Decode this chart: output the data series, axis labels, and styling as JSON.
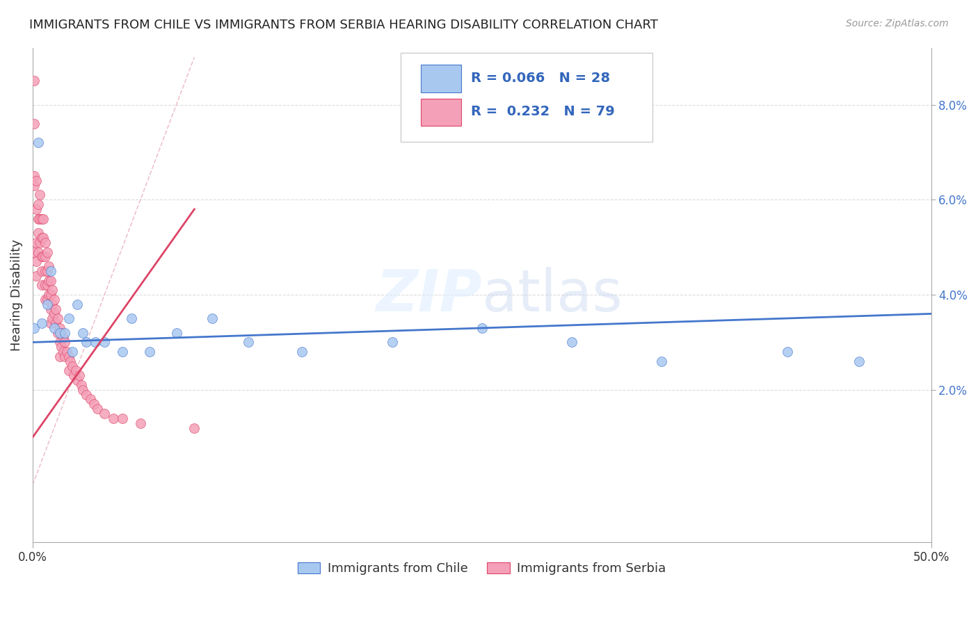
{
  "title": "IMMIGRANTS FROM CHILE VS IMMIGRANTS FROM SERBIA HEARING DISABILITY CORRELATION CHART",
  "source": "Source: ZipAtlas.com",
  "ylabel": "Hearing Disability",
  "xlim": [
    0.0,
    0.5
  ],
  "ylim": [
    -0.01,
    0.092
  ],
  "chile_color": "#a8c8f0",
  "serbia_color": "#f4a0b8",
  "chile_line_color": "#4477cc",
  "serbia_line_color": "#dd4466",
  "chile_R": 0.066,
  "chile_N": 28,
  "serbia_R": 0.232,
  "serbia_N": 79,
  "chile_x": [
    0.001,
    0.003,
    0.005,
    0.008,
    0.01,
    0.012,
    0.015,
    0.018,
    0.02,
    0.022,
    0.025,
    0.028,
    0.03,
    0.035,
    0.04,
    0.05,
    0.055,
    0.065,
    0.08,
    0.1,
    0.12,
    0.15,
    0.2,
    0.25,
    0.3,
    0.35,
    0.42,
    0.46
  ],
  "chile_y": [
    0.033,
    0.072,
    0.034,
    0.038,
    0.045,
    0.033,
    0.032,
    0.032,
    0.035,
    0.028,
    0.038,
    0.032,
    0.03,
    0.03,
    0.03,
    0.028,
    0.035,
    0.028,
    0.032,
    0.035,
    0.03,
    0.028,
    0.03,
    0.033,
    0.03,
    0.026,
    0.028,
    0.026
  ],
  "serbia_x": [
    0.001,
    0.001,
    0.001,
    0.001,
    0.001,
    0.002,
    0.002,
    0.002,
    0.002,
    0.002,
    0.003,
    0.003,
    0.003,
    0.003,
    0.004,
    0.004,
    0.004,
    0.005,
    0.005,
    0.005,
    0.005,
    0.005,
    0.006,
    0.006,
    0.006,
    0.007,
    0.007,
    0.007,
    0.007,
    0.007,
    0.008,
    0.008,
    0.008,
    0.008,
    0.009,
    0.009,
    0.009,
    0.01,
    0.01,
    0.01,
    0.01,
    0.011,
    0.011,
    0.011,
    0.012,
    0.012,
    0.013,
    0.013,
    0.014,
    0.014,
    0.015,
    0.015,
    0.015,
    0.016,
    0.016,
    0.017,
    0.017,
    0.018,
    0.018,
    0.019,
    0.02,
    0.02,
    0.021,
    0.022,
    0.023,
    0.024,
    0.025,
    0.026,
    0.027,
    0.028,
    0.03,
    0.032,
    0.034,
    0.036,
    0.04,
    0.045,
    0.05,
    0.06,
    0.09
  ],
  "serbia_y": [
    0.085,
    0.076,
    0.065,
    0.063,
    0.049,
    0.064,
    0.058,
    0.051,
    0.047,
    0.044,
    0.059,
    0.056,
    0.053,
    0.049,
    0.061,
    0.056,
    0.051,
    0.056,
    0.052,
    0.048,
    0.045,
    0.042,
    0.056,
    0.052,
    0.048,
    0.051,
    0.048,
    0.045,
    0.042,
    0.039,
    0.049,
    0.045,
    0.042,
    0.039,
    0.046,
    0.043,
    0.04,
    0.043,
    0.04,
    0.037,
    0.034,
    0.041,
    0.038,
    0.035,
    0.039,
    0.036,
    0.037,
    0.034,
    0.035,
    0.032,
    0.033,
    0.03,
    0.027,
    0.032,
    0.029,
    0.031,
    0.028,
    0.03,
    0.027,
    0.028,
    0.027,
    0.024,
    0.026,
    0.025,
    0.023,
    0.024,
    0.022,
    0.023,
    0.021,
    0.02,
    0.019,
    0.018,
    0.017,
    0.016,
    0.015,
    0.014,
    0.014,
    0.013,
    0.012
  ],
  "watermark_zip": "ZIP",
  "watermark_atlas": "atlas",
  "legend_label_chile": "Immigrants from Chile",
  "legend_label_serbia": "Immigrants from Serbia"
}
